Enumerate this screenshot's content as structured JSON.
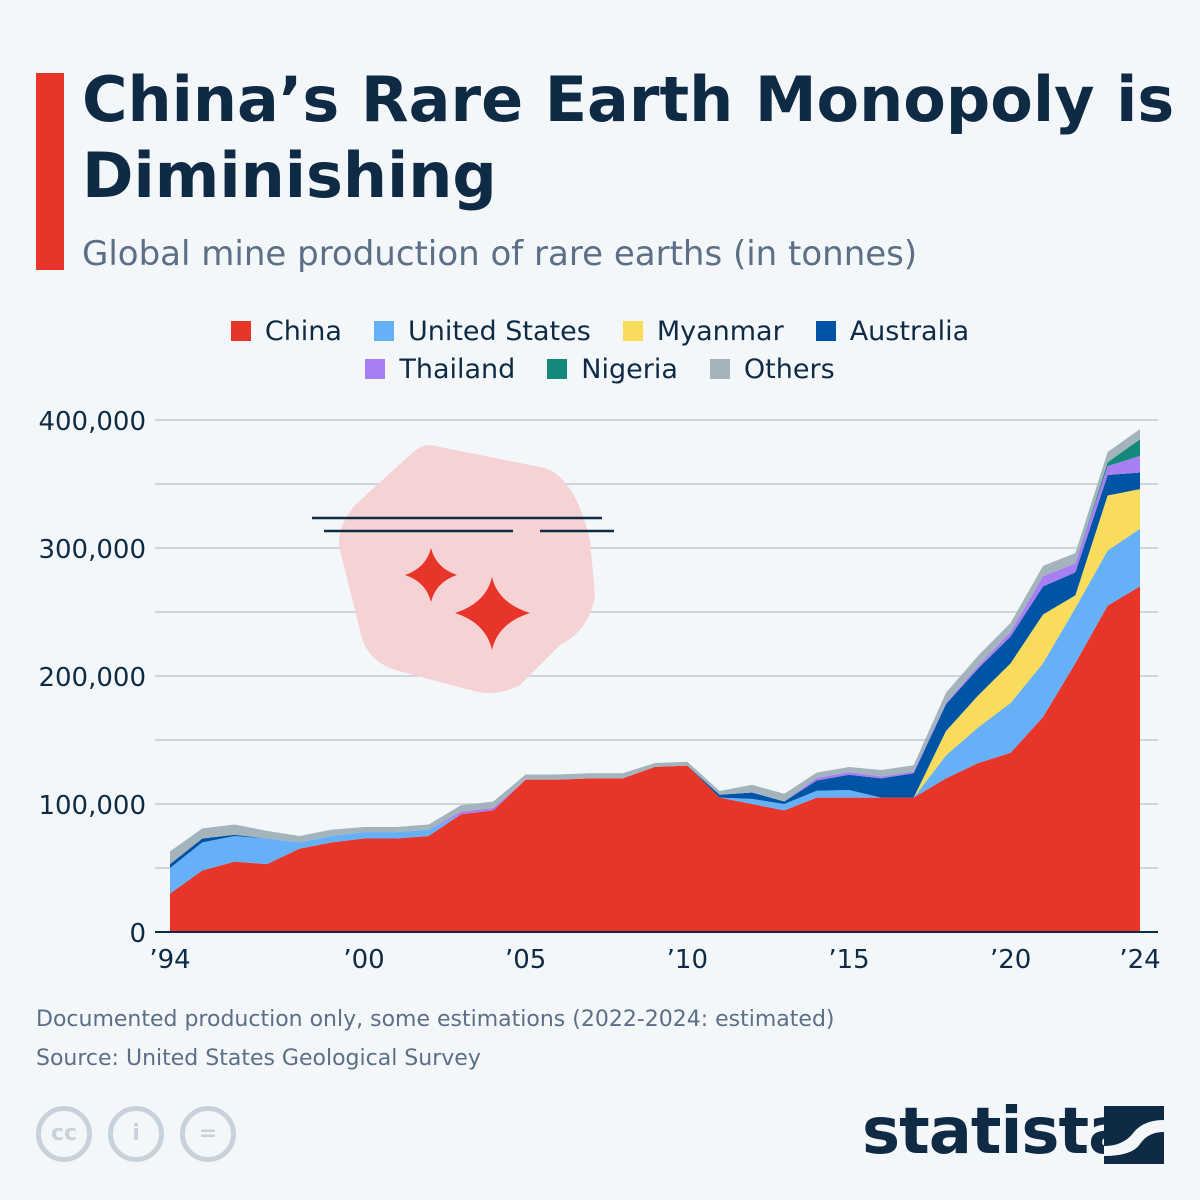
{
  "header": {
    "title": "China’s Rare Earth Monopoly is Diminishing",
    "subtitle": "Global mine production of rare earths (in tonnes)"
  },
  "chart_data": {
    "type": "area",
    "stacked": true,
    "title": "China’s Rare Earth Monopoly is Diminishing",
    "subtitle": "Global mine production of rare earths (in tonnes)",
    "x": [
      1994,
      1995,
      1996,
      1997,
      1998,
      1999,
      2000,
      2001,
      2002,
      2003,
      2004,
      2005,
      2006,
      2007,
      2008,
      2009,
      2010,
      2011,
      2012,
      2013,
      2014,
      2015,
      2016,
      2017,
      2018,
      2019,
      2020,
      2021,
      2022,
      2023,
      2024
    ],
    "xticks": [
      {
        "value": 1994,
        "label": "’94"
      },
      {
        "value": 2000,
        "label": "’00"
      },
      {
        "value": 2005,
        "label": "’05"
      },
      {
        "value": 2010,
        "label": "’10"
      },
      {
        "value": 2015,
        "label": "’15"
      },
      {
        "value": 2020,
        "label": "’20"
      },
      {
        "value": 2024,
        "label": "’24"
      }
    ],
    "yticks": [
      {
        "value": 0,
        "label": "0"
      },
      {
        "value": 100000,
        "label": "100,000"
      },
      {
        "value": 200000,
        "label": "200,000"
      },
      {
        "value": 300000,
        "label": "300,000"
      },
      {
        "value": 400000,
        "label": "400,000"
      }
    ],
    "ylim": [
      0,
      400000
    ],
    "grid": true,
    "legend_position": "top",
    "series": [
      {
        "name": "China",
        "color": "#e8352a",
        "values": [
          30000,
          48000,
          55000,
          53000,
          65000,
          70000,
          73000,
          73000,
          75000,
          92000,
          95000,
          119000,
          119000,
          120000,
          120000,
          129000,
          130000,
          105000,
          100000,
          95000,
          105000,
          105000,
          105000,
          105000,
          120000,
          132000,
          140000,
          168000,
          210000,
          255000,
          270000
        ]
      },
      {
        "name": "United States",
        "color": "#66b0f8",
        "values": [
          20000,
          22000,
          20000,
          20000,
          5000,
          5000,
          5000,
          5000,
          5000,
          0,
          0,
          0,
          0,
          0,
          0,
          0,
          0,
          0,
          4000,
          5000,
          5400,
          5900,
          0,
          0,
          18000,
          28000,
          39000,
          42000,
          43000,
          43000,
          45000
        ]
      },
      {
        "name": "Myanmar",
        "color": "#f9dc5c",
        "values": [
          0,
          0,
          0,
          0,
          0,
          0,
          0,
          0,
          0,
          0,
          0,
          0,
          0,
          0,
          0,
          0,
          0,
          0,
          0,
          0,
          0,
          0,
          0,
          0,
          19000,
          25000,
          31000,
          38000,
          10000,
          43000,
          31000
        ]
      },
      {
        "name": "Australia",
        "color": "#0054a6",
        "values": [
          3000,
          3000,
          1000,
          0,
          0,
          0,
          0,
          0,
          0,
          0,
          0,
          0,
          0,
          0,
          0,
          0,
          0,
          2200,
          5000,
          2000,
          8000,
          12000,
          15000,
          19000,
          21000,
          21000,
          21000,
          22000,
          18000,
          16000,
          13000
        ]
      },
      {
        "name": "Thailand",
        "color": "#a87ff2",
        "values": [
          0,
          0,
          0,
          0,
          0,
          0,
          0,
          0,
          0,
          2000,
          2000,
          0,
          0,
          0,
          0,
          0,
          0,
          0,
          0,
          0,
          2100,
          2000,
          1600,
          1300,
          1000,
          2000,
          3600,
          8000,
          7000,
          7000,
          13000
        ]
      },
      {
        "name": "Nigeria",
        "color": "#14897a",
        "values": [
          0,
          0,
          0,
          0,
          0,
          0,
          0,
          0,
          0,
          0,
          0,
          0,
          0,
          0,
          0,
          0,
          0,
          0,
          0,
          0,
          0,
          0,
          0,
          0,
          0,
          0,
          0,
          0,
          0,
          3000,
          13000
        ]
      },
      {
        "name": "Others",
        "color": "#a3b4bc",
        "values": [
          10000,
          8000,
          8000,
          6000,
          5000,
          5000,
          4000,
          4000,
          4000,
          5000,
          5000,
          4000,
          4000,
          4000,
          4000,
          3000,
          3000,
          3000,
          6000,
          6000,
          4000,
          4000,
          5000,
          5000,
          8000,
          8000,
          7000,
          8000,
          8000,
          8000,
          8000
        ]
      }
    ]
  },
  "notes": {
    "note": "Documented production only, some estimations (2022-2024: estimated)",
    "source": "Source: United States Geological Survey"
  },
  "brand": {
    "logo": "statista"
  }
}
